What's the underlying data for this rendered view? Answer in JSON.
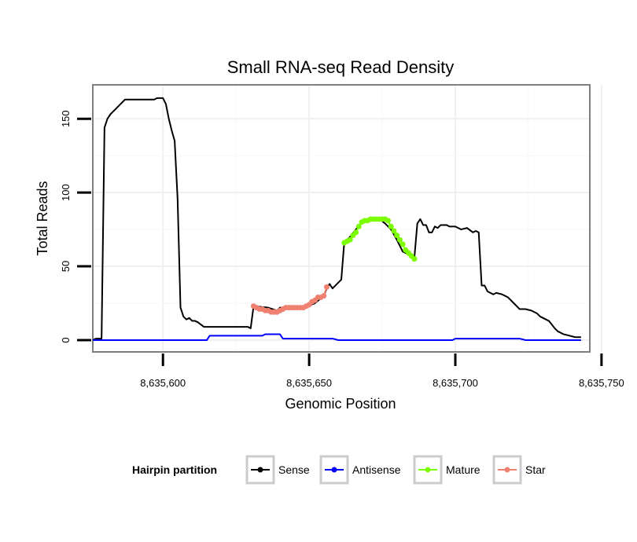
{
  "chart_data": {
    "type": "line",
    "title": "Small RNA-seq Read Density",
    "xlabel": "Genomic Position",
    "ylabel": "Total Reads",
    "xlim": [
      8635576,
      8635746
    ],
    "ylim": [
      -8,
      173
    ],
    "xticks": [
      8635600,
      8635650,
      8635700,
      8635750
    ],
    "xtick_labels": [
      "8,635,600",
      "8,635,650",
      "8,635,700",
      "8,635,750"
    ],
    "yticks": [
      0,
      50,
      100,
      150
    ],
    "ytick_labels": [
      "0",
      "50",
      "100",
      "150"
    ],
    "grid": true,
    "legend": {
      "title": "Hairpin partition",
      "position": "bottom",
      "entries": [
        "Sense",
        "Antisense",
        "Mature",
        "Star"
      ]
    },
    "series": [
      {
        "name": "Sense",
        "color": "#000000",
        "style": "line",
        "x": [
          8635576,
          8635577,
          8635578,
          8635579,
          8635580,
          8635581,
          8635582,
          8635583,
          8635584,
          8635585,
          8635587,
          8635590,
          8635595,
          8635597,
          8635598,
          8635600,
          8635601,
          8635602,
          8635603,
          8635604,
          8635605,
          8635606,
          8635607,
          8635608,
          8635609,
          8635610,
          8635611,
          8635612,
          8635614,
          8635620,
          8635626,
          8635629,
          8635630,
          8635631,
          8635636,
          8635639,
          8635640,
          8635645,
          8635648,
          8635652,
          8635655,
          8635656,
          8635657,
          8635658,
          8635659,
          8635660,
          8635661,
          8635662,
          8635663,
          8635664,
          8635666,
          8635668,
          8635670,
          8635672,
          8635674,
          8635676,
          8635678,
          8635680,
          8635682,
          8635684,
          8635686,
          8635687,
          8635688,
          8635689,
          8635690,
          8635691,
          8635692,
          8635693,
          8635694,
          8635695,
          8635696,
          8635697,
          8635698,
          8635700,
          8635702,
          8635704,
          8635706,
          8635707,
          8635708,
          8635709,
          8635710,
          8635711,
          8635712,
          8635713,
          8635714,
          8635716,
          8635718,
          8635719,
          8635720,
          8635722,
          8635724,
          8635726,
          8635728,
          8635729,
          8635730,
          8635732,
          8635734,
          8635735,
          8635737,
          8635739,
          8635741,
          8635743
        ],
        "y": [
          0,
          1,
          1,
          1,
          144,
          150,
          153,
          155,
          157,
          159,
          163,
          163,
          163,
          163,
          164,
          164,
          160,
          150,
          142,
          135,
          96,
          22,
          16,
          14,
          15,
          13,
          13,
          12,
          9,
          9,
          9,
          9,
          8,
          23,
          22,
          20,
          22,
          22,
          22,
          25,
          30,
          35,
          38,
          35,
          37,
          39,
          41,
          66,
          68,
          70,
          75,
          80,
          82,
          82,
          82,
          79,
          75,
          68,
          60,
          58,
          56,
          79,
          82,
          78,
          78,
          73,
          73,
          77,
          76,
          78,
          78,
          78,
          77,
          77,
          75,
          76,
          73,
          74,
          73,
          37,
          37,
          33,
          32,
          31,
          32,
          31,
          29,
          27,
          25,
          21,
          21,
          20,
          18,
          16,
          15,
          13,
          8,
          6,
          4,
          3,
          2,
          2
        ]
      },
      {
        "name": "Antisense",
        "color": "#0000ff",
        "style": "line",
        "x": [
          8635576,
          8635590,
          8635605,
          8635615,
          8635616,
          8635622,
          8635628,
          8635634,
          8635635,
          8635640,
          8635641,
          8635650,
          8635658,
          8635660,
          8635675,
          8635690,
          8635699,
          8635700,
          8635710,
          8635722,
          8635724,
          8635743
        ],
        "y": [
          0,
          0,
          0,
          0,
          3,
          3,
          3,
          3,
          4,
          4,
          1,
          1,
          1,
          0,
          0,
          0,
          0,
          1,
          1,
          1,
          0,
          0
        ]
      },
      {
        "name": "Mature",
        "color": "#7cfc00",
        "style": "points",
        "x": [
          8635662,
          8635663,
          8635664,
          8635665,
          8635666,
          8635667,
          8635668,
          8635669,
          8635670,
          8635671,
          8635672,
          8635673,
          8635674,
          8635675,
          8635676,
          8635677,
          8635678,
          8635679,
          8635680,
          8635681,
          8635682,
          8635683,
          8635684,
          8635685,
          8635686
        ],
        "y": [
          66,
          67,
          68,
          71,
          73,
          77,
          80,
          81,
          81,
          82,
          82,
          82,
          82,
          82,
          82,
          81,
          77,
          74,
          71,
          68,
          65,
          61,
          59,
          57,
          55
        ]
      },
      {
        "name": "Star",
        "color": "#f08070",
        "style": "points",
        "x": [
          8635631,
          8635632,
          8635633,
          8635634,
          8635635,
          8635636,
          8635637,
          8635638,
          8635639,
          8635640,
          8635641,
          8635642,
          8635643,
          8635644,
          8635645,
          8635646,
          8635647,
          8635648,
          8635649,
          8635650,
          8635651,
          8635652,
          8635653,
          8635654,
          8635655,
          8635656
        ],
        "y": [
          23,
          22,
          21,
          21,
          20,
          20,
          19,
          19,
          19,
          20,
          21,
          22,
          22,
          22,
          22,
          22,
          22,
          22,
          23,
          24,
          26,
          27,
          29,
          29,
          30,
          36
        ]
      }
    ]
  }
}
